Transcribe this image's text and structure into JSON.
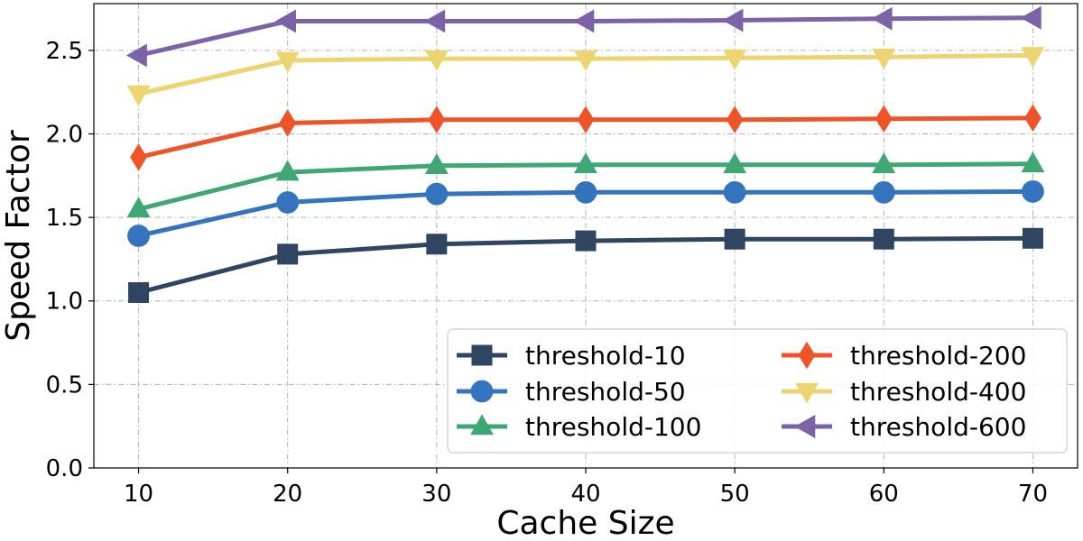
{
  "chart_data": {
    "type": "line",
    "title": "",
    "xlabel": "Cache Size",
    "ylabel": "Speed Factor",
    "x": [
      10,
      20,
      30,
      40,
      50,
      60,
      70
    ],
    "xticks": [
      "10",
      "20",
      "30",
      "40",
      "50",
      "60",
      "70"
    ],
    "xlim": [
      7,
      73
    ],
    "ylim": [
      0,
      2.78
    ],
    "yticks": [
      "0.0",
      "0.5",
      "1.0",
      "1.5",
      "2.0",
      "2.5"
    ],
    "grid": true,
    "legend": {
      "placement": "bottom-right",
      "columns": 2
    },
    "series": [
      {
        "name": "threshold-10",
        "color": "#2f4562",
        "marker": "square",
        "values": [
          1.05,
          1.28,
          1.34,
          1.36,
          1.37,
          1.37,
          1.375
        ]
      },
      {
        "name": "threshold-50",
        "color": "#3474be",
        "marker": "circle",
        "values": [
          1.39,
          1.59,
          1.64,
          1.65,
          1.65,
          1.65,
          1.655
        ]
      },
      {
        "name": "threshold-100",
        "color": "#3fa773",
        "marker": "triangle-up",
        "values": [
          1.55,
          1.77,
          1.81,
          1.815,
          1.815,
          1.815,
          1.82
        ]
      },
      {
        "name": "threshold-200",
        "color": "#ee5427",
        "marker": "diamond",
        "values": [
          1.86,
          2.065,
          2.085,
          2.085,
          2.085,
          2.09,
          2.095
        ]
      },
      {
        "name": "threshold-400",
        "color": "#ecd470",
        "marker": "triangle-down",
        "values": [
          2.24,
          2.44,
          2.45,
          2.45,
          2.455,
          2.46,
          2.47
        ]
      },
      {
        "name": "threshold-600",
        "color": "#7c62a6",
        "marker": "triangle-left",
        "values": [
          2.47,
          2.675,
          2.675,
          2.675,
          2.68,
          2.69,
          2.695
        ]
      }
    ]
  }
}
